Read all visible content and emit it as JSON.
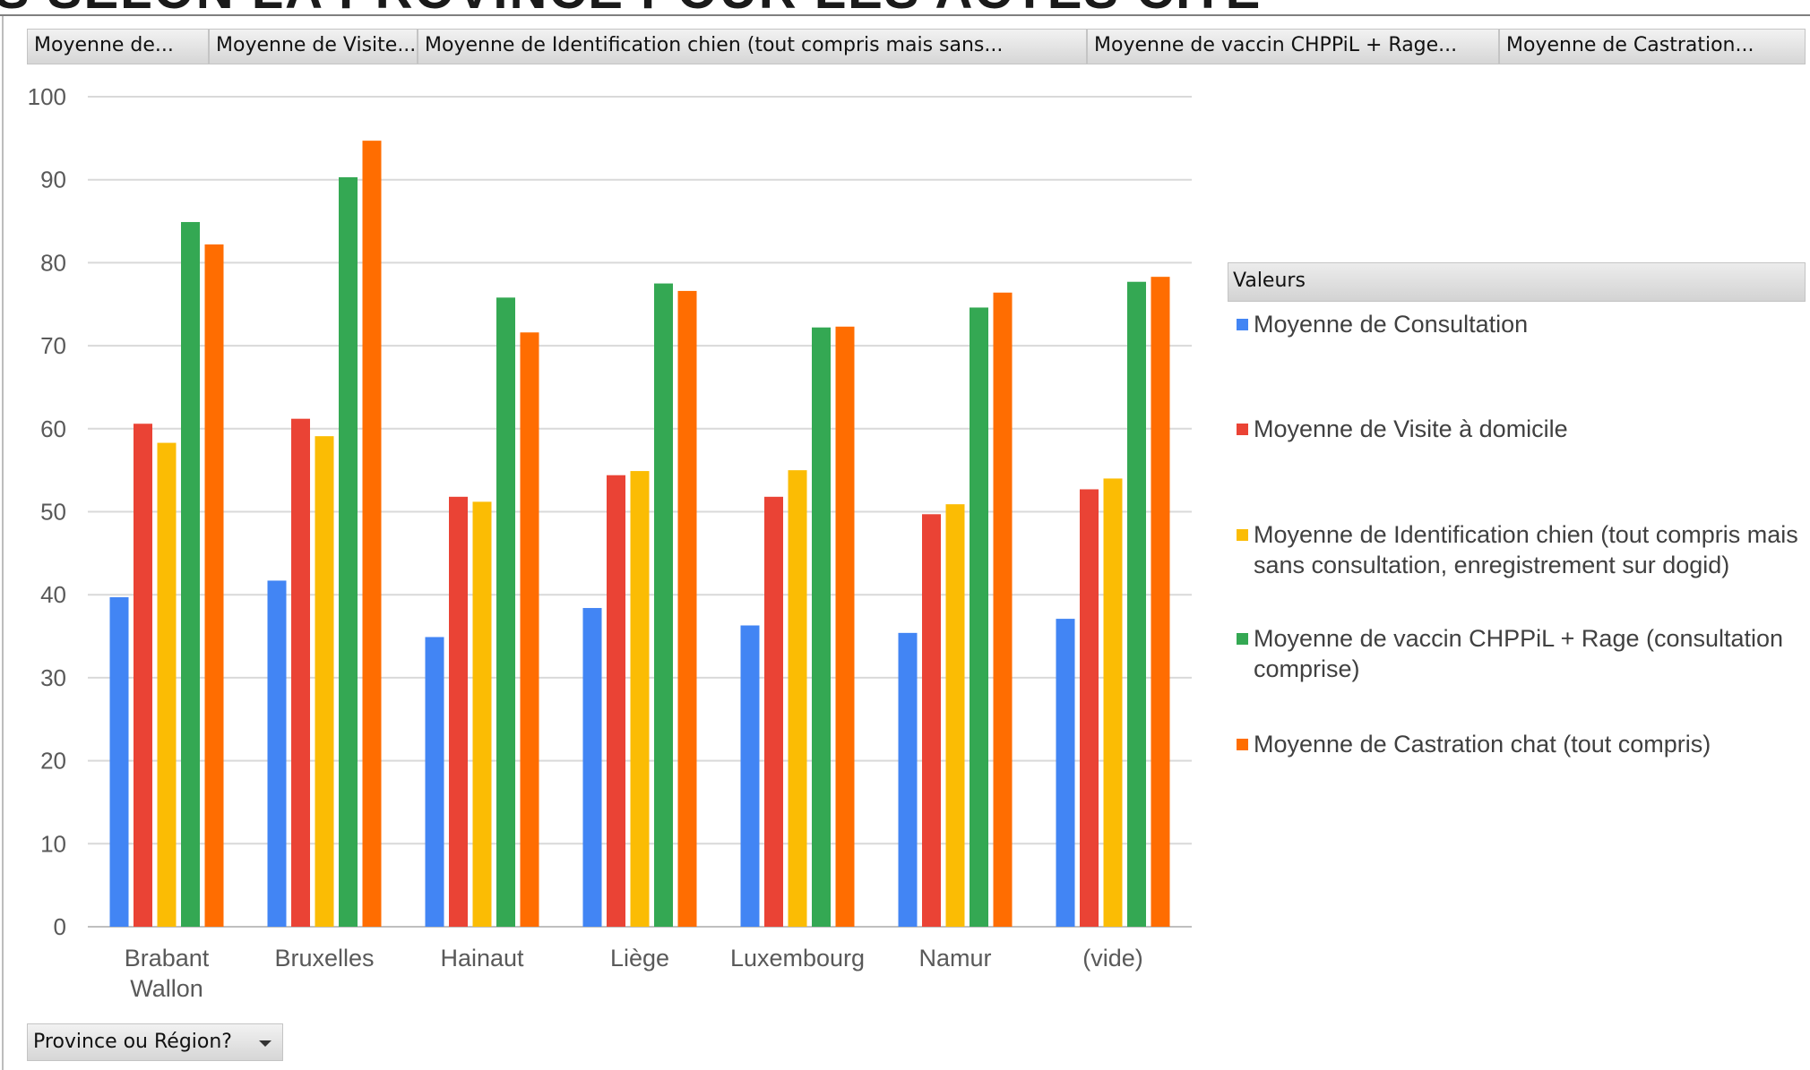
{
  "page": {
    "title_fragment": "S SELON LA PROVINCE POUR LES ACTES CITÉ",
    "field_buttons": [
      "Moyenne de...",
      "Moyenne de Visite...",
      "Moyenne de Identification chien (tout compris mais sans...",
      "Moyenne de vaccin CHPPiL + Rage...",
      "Moyenne de Castration..."
    ],
    "legend_title": "Valeurs",
    "filter_label": "Province ou Région?"
  },
  "chart_data": {
    "type": "bar",
    "categories": [
      [
        "Brabant",
        "Wallon"
      ],
      [
        "Bruxelles"
      ],
      [
        "Hainaut"
      ],
      [
        "Liège"
      ],
      [
        "Luxembourg"
      ],
      [
        "Namur"
      ],
      [
        "(vide)"
      ]
    ],
    "series": [
      {
        "name": "Moyenne de Consultation",
        "color": "#4285f4",
        "values": [
          39.7,
          41.7,
          34.9,
          38.4,
          36.3,
          35.4,
          37.1
        ]
      },
      {
        "name": "Moyenne de Visite à domicile",
        "color": "#ea4335",
        "values": [
          60.6,
          61.2,
          51.8,
          54.4,
          51.8,
          49.7,
          52.7
        ]
      },
      {
        "name": "Moyenne de Identification chien (tout compris mais sans consultation, enregistrement sur dogid)",
        "color": "#fbbc04",
        "values": [
          58.3,
          59.1,
          51.2,
          54.9,
          55.0,
          50.9,
          54.0
        ]
      },
      {
        "name": "Moyenne de vaccin CHPPiL + Rage (consultation comprise)",
        "color": "#34a853",
        "values": [
          84.9,
          90.3,
          75.8,
          77.5,
          72.2,
          74.6,
          77.7
        ]
      },
      {
        "name": "Moyenne de Castration chat (tout compris)",
        "color": "#ff6d01",
        "values": [
          82.2,
          94.7,
          71.6,
          76.6,
          72.3,
          76.4,
          78.3
        ]
      }
    ],
    "ylim": [
      0,
      100
    ],
    "ytick_step": 10,
    "grid": true,
    "legend_position": "right"
  },
  "colors": {
    "gridline": "#d9d9d9",
    "axis": "#bfbfbf",
    "tick_text": "#595959"
  }
}
